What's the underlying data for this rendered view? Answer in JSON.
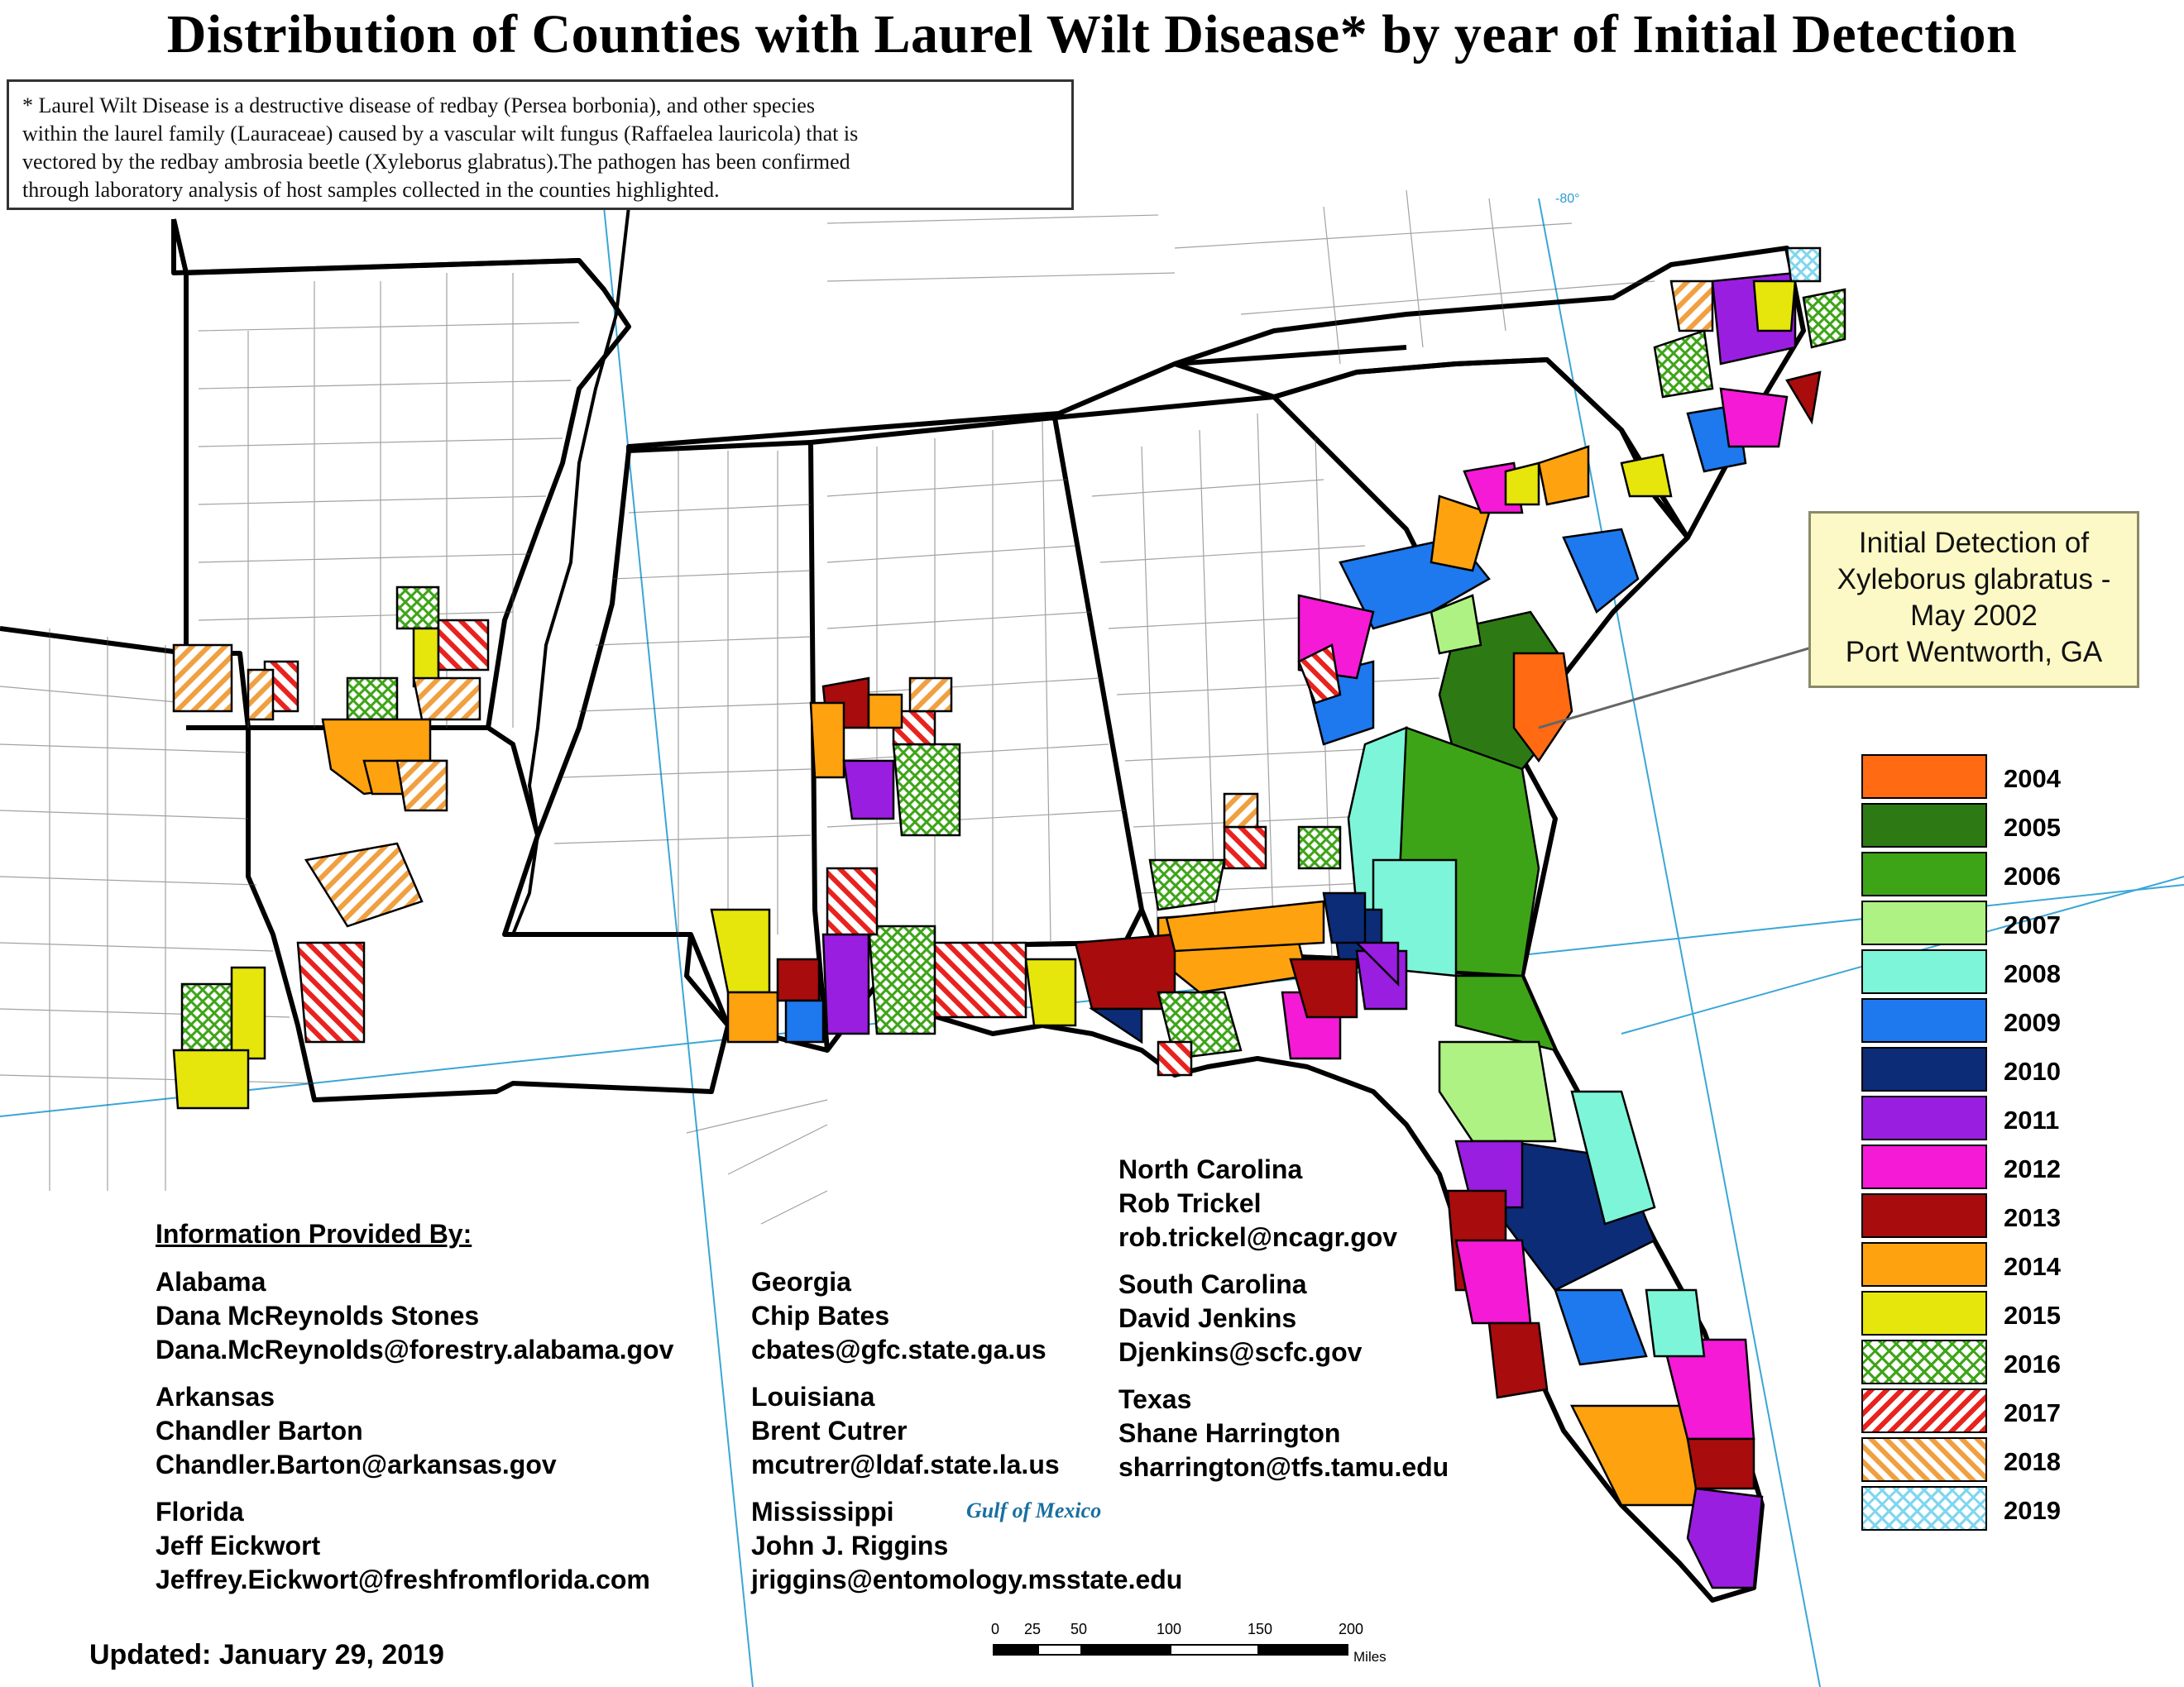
{
  "title": "Distribution of Counties with Laurel Wilt Disease* by year of Initial Detection",
  "note": {
    "line1": "* Laurel Wilt Disease is a destructive disease of redbay (Persea borbonia), and other species",
    "line2": "within the laurel family (Lauraceae) caused by a vascular wilt fungus (Raffaelea lauricola) that is",
    "line3": "vectored by the redbay ambrosia beetle (Xyleborus glabratus).The pathogen has been confirmed",
    "line4": "through laboratory analysis of host samples collected in the counties highlighted."
  },
  "callout": {
    "line1": "Initial Detection of",
    "line2": "Xyleborus glabratus -",
    "line3": "May 2002",
    "line4": "Port Wentworth, GA"
  },
  "legend": [
    {
      "year": "2004",
      "color": "#ff6a13",
      "pattern": "solid"
    },
    {
      "year": "2005",
      "color": "#2d7a14",
      "pattern": "solid"
    },
    {
      "year": "2006",
      "color": "#3da417",
      "pattern": "solid"
    },
    {
      "year": "2007",
      "color": "#aef284",
      "pattern": "solid"
    },
    {
      "year": "2008",
      "color": "#7df5d9",
      "pattern": "solid"
    },
    {
      "year": "2009",
      "color": "#1e78ee",
      "pattern": "solid"
    },
    {
      "year": "2010",
      "color": "#0c2c78",
      "pattern": "solid"
    },
    {
      "year": "2011",
      "color": "#9a1ee0",
      "pattern": "solid"
    },
    {
      "year": "2012",
      "color": "#f51ad6",
      "pattern": "solid"
    },
    {
      "year": "2013",
      "color": "#a80c0c",
      "pattern": "solid"
    },
    {
      "year": "2014",
      "color": "#ffa20f",
      "pattern": "solid"
    },
    {
      "year": "2015",
      "color": "#e6e60c",
      "pattern": "solid"
    },
    {
      "year": "2016",
      "color": "#3da417",
      "pattern": "crosshatch"
    },
    {
      "year": "2017",
      "color": "#e8231f",
      "pattern": "diagonal"
    },
    {
      "year": "2018",
      "color": "#f0a040",
      "pattern": "diagonal"
    },
    {
      "year": "2019",
      "color": "#7fd6ef",
      "pattern": "crosshatch"
    }
  ],
  "info_heading": "Information Provided By:",
  "contacts": {
    "alabama": {
      "state": "Alabama",
      "name": "Dana McReynolds Stones",
      "email": "Dana.McReynolds@forestry.alabama.gov"
    },
    "arkansas": {
      "state": "Arkansas",
      "name": "Chandler Barton",
      "email": "Chandler.Barton@arkansas.gov"
    },
    "florida": {
      "state": "Florida",
      "name": "Jeff Eickwort",
      "email": "Jeffrey.Eickwort@freshfromflorida.com"
    },
    "georgia": {
      "state": "Georgia",
      "name": "Chip Bates",
      "email": "cbates@gfc.state.ga.us"
    },
    "louisiana": {
      "state": "Louisiana",
      "name": "Brent Cutrer",
      "email": "mcutrer@ldaf.state.la.us"
    },
    "mississippi": {
      "state": "Mississippi",
      "name": "John J. Riggins",
      "email": "jriggins@entomology.msstate.edu"
    },
    "north_carolina": {
      "state": "North Carolina",
      "name": "Rob Trickel",
      "email": "rob.trickel@ncagr.gov"
    },
    "south_carolina": {
      "state": "South Carolina",
      "name": "David Jenkins",
      "email": "Djenkins@scfc.gov"
    },
    "texas": {
      "state": "Texas",
      "name": "Shane Harrington",
      "email": "sharrington@tfs.tamu.edu"
    }
  },
  "updated": "Updated: January 29, 2019",
  "gulf_label": "Gulf of Mexico",
  "longitude_label": "-80°",
  "scale_bar": {
    "ticks": [
      "0",
      "25",
      "50",
      "100",
      "150",
      "200"
    ],
    "unit": "Miles"
  }
}
